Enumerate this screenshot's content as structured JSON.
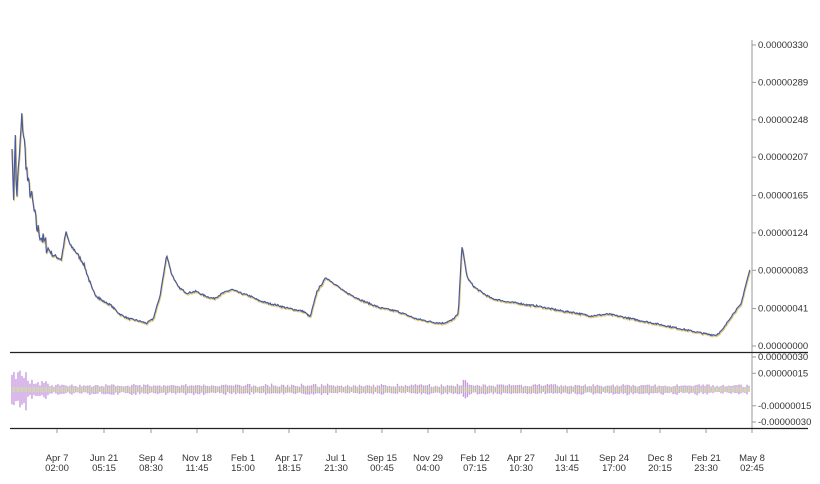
{
  "colors": {
    "price_line": "#4a5a9c",
    "price_shadow": "#d6b84a",
    "osc_fill": "#c99be0",
    "osc_yellow": "#d9c96a",
    "osc_green": "#9bcf9b",
    "separator": "#222222",
    "axis": "#9a9a9a"
  },
  "chart_data": [
    {
      "type": "line",
      "name": "price-panel",
      "ylim": [
        0,
        3.3e-06
      ],
      "y_ticks": [
        "0.00000330",
        "0.00000289",
        "0.00000248",
        "0.00000207",
        "0.00000165",
        "0.00000124",
        "0.00000083",
        "0.00000041",
        "0.00000000"
      ],
      "x_ticks": [
        {
          "date": "Apr 7",
          "time": "02:00"
        },
        {
          "date": "Jun 21",
          "time": "05:15"
        },
        {
          "date": "Sep 4",
          "time": "08:30"
        },
        {
          "date": "Nov 18",
          "time": "11:45"
        },
        {
          "date": "Feb 1",
          "time": "15:00"
        },
        {
          "date": "Apr 17",
          "time": "18:15"
        },
        {
          "date": "Jul 1",
          "time": "21:30"
        },
        {
          "date": "Sep 15",
          "time": "00:45"
        },
        {
          "date": "Nov 29",
          "time": "04:00"
        },
        {
          "date": "Feb 12",
          "time": "07:15"
        },
        {
          "date": "Apr 27",
          "time": "10:30"
        },
        {
          "date": "Jul 11",
          "time": "13:45"
        },
        {
          "date": "Sep 24",
          "time": "17:00"
        },
        {
          "date": "Dec 8",
          "time": "20:15"
        },
        {
          "date": "Feb 21",
          "time": "23:30"
        },
        {
          "date": "May 8",
          "time": "02:45"
        }
      ],
      "series_points": [
        [
          0,
          2.25e-06
        ],
        [
          0.3,
          1.5e-06
        ],
        [
          0.7,
          2.35e-06
        ],
        [
          1.0,
          1.6e-06
        ],
        [
          1.6,
          2.05e-06
        ],
        [
          2.2,
          2.5e-06
        ],
        [
          2.8,
          2.2e-06
        ],
        [
          3.5,
          1.8e-06
        ],
        [
          4.5,
          1.6e-06
        ],
        [
          5.5,
          1.3e-06
        ],
        [
          7,
          1.15e-06
        ],
        [
          9,
          1e-06
        ],
        [
          11,
          9.5e-07
        ],
        [
          12,
          1.25e-06
        ],
        [
          13,
          1.1e-06
        ],
        [
          14,
          1.05e-06
        ],
        [
          16,
          9e-07
        ],
        [
          18,
          6e-07
        ],
        [
          20,
          5e-07
        ],
        [
          22,
          4.5e-07
        ],
        [
          24,
          3.5e-07
        ],
        [
          26,
          3e-07
        ],
        [
          28,
          2.8e-07
        ],
        [
          30,
          2.5e-07
        ],
        [
          31.5,
          3e-07
        ],
        [
          33,
          5.5e-07
        ],
        [
          34.5,
          1e-06
        ],
        [
          35.5,
          8e-07
        ],
        [
          37,
          6.5e-07
        ],
        [
          39,
          5.8e-07
        ],
        [
          41,
          6e-07
        ],
        [
          43,
          5.5e-07
        ],
        [
          45,
          5.2e-07
        ],
        [
          47,
          5.8e-07
        ],
        [
          49,
          6.2e-07
        ],
        [
          51,
          5.8e-07
        ],
        [
          53,
          5.5e-07
        ],
        [
          55,
          5e-07
        ],
        [
          57,
          4.7e-07
        ],
        [
          59,
          4.5e-07
        ],
        [
          61,
          4.2e-07
        ],
        [
          63,
          4e-07
        ],
        [
          65,
          3.8e-07
        ],
        [
          66.5,
          3.2e-07
        ],
        [
          68,
          6e-07
        ],
        [
          70,
          7.5e-07
        ],
        [
          72,
          6.8e-07
        ],
        [
          74,
          6e-07
        ],
        [
          76,
          5.5e-07
        ],
        [
          78,
          5e-07
        ],
        [
          80,
          4.6e-07
        ],
        [
          82,
          4.2e-07
        ],
        [
          84,
          4e-07
        ],
        [
          86,
          3.8e-07
        ],
        [
          88,
          3.4e-07
        ],
        [
          90,
          3e-07
        ],
        [
          92,
          2.8e-07
        ],
        [
          94,
          2.6e-07
        ],
        [
          96,
          2.5e-07
        ],
        [
          98,
          2.8e-07
        ],
        [
          99.5,
          3.5e-07
        ],
        [
          100.3,
          1.1e-06
        ],
        [
          101.5,
          7.5e-07
        ],
        [
          103,
          6.5e-07
        ],
        [
          105,
          5.8e-07
        ],
        [
          107,
          5.2e-07
        ],
        [
          109,
          5e-07
        ],
        [
          111,
          4.8e-07
        ],
        [
          113,
          4.7e-07
        ],
        [
          115,
          4.5e-07
        ],
        [
          117,
          4.4e-07
        ],
        [
          119,
          4.2e-07
        ],
        [
          121,
          4e-07
        ],
        [
          123,
          3.8e-07
        ],
        [
          125,
          3.7e-07
        ],
        [
          127,
          3.5e-07
        ],
        [
          129,
          3.3e-07
        ],
        [
          131,
          3.4e-07
        ],
        [
          133,
          3.5e-07
        ],
        [
          135,
          3.3e-07
        ],
        [
          137,
          3.1e-07
        ],
        [
          139,
          2.9e-07
        ],
        [
          141,
          2.7e-07
        ],
        [
          143,
          2.5e-07
        ],
        [
          145,
          2.3e-07
        ],
        [
          147,
          2.1e-07
        ],
        [
          149,
          1.9e-07
        ],
        [
          151,
          1.7e-07
        ],
        [
          153,
          1.5e-07
        ],
        [
          155,
          1.3e-07
        ],
        [
          157,
          1.2e-07
        ],
        [
          158.5,
          1.8e-07
        ],
        [
          160,
          3e-07
        ],
        [
          161.5,
          4e-07
        ],
        [
          162.5,
          4.5e-07
        ],
        [
          163.5,
          6.5e-07
        ],
        [
          164.5,
          8.3e-07
        ]
      ],
      "x_domain": [
        0,
        165
      ]
    },
    {
      "type": "area",
      "name": "oscillator-panel",
      "ylim": [
        -3e-07,
        3e-07
      ],
      "y_ticks": [
        "0.00000030",
        "0.00000015",
        "-0.00000015",
        "-0.00000030"
      ]
    }
  ]
}
